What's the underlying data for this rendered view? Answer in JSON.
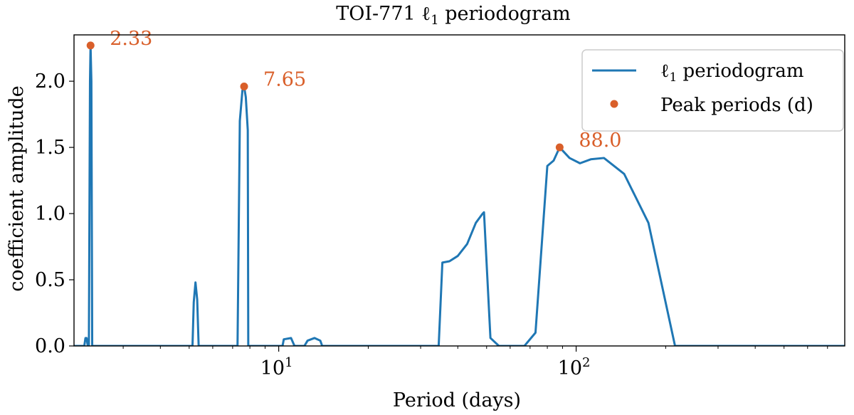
{
  "chart_data": {
    "type": "line",
    "title": "TOI-771 ℓ",
    "title_subscript": "1",
    "title_suffix": " periodogram",
    "xlabel": "Period (days)",
    "ylabel": "coefficient amplitude",
    "xscale": "log",
    "xlim": [
      2.05,
      800
    ],
    "ylim": [
      0,
      2.35
    ],
    "y_ticks": [
      {
        "value": 0.0,
        "label": "0.0"
      },
      {
        "value": 0.5,
        "label": "0.5"
      },
      {
        "value": 1.0,
        "label": "1.0"
      },
      {
        "value": 1.5,
        "label": "1.5"
      },
      {
        "value": 2.0,
        "label": "2.0"
      }
    ],
    "x_major_ticks": [
      {
        "value": 10,
        "base": "10",
        "exp": "1"
      },
      {
        "value": 100,
        "base": "10",
        "exp": "2"
      }
    ],
    "x_minor_ticks": [
      3,
      4,
      5,
      6,
      7,
      8,
      9,
      20,
      30,
      40,
      50,
      60,
      70,
      80,
      90,
      200,
      300,
      400,
      500,
      600,
      700
    ],
    "grid": false,
    "series": [
      {
        "name": "ℓ₁ periodogram",
        "legend_main": "ℓ",
        "legend_sub": "1",
        "legend_rest": " periodogram",
        "color": "#1f77b4",
        "points": [
          [
            2.05,
            0
          ],
          [
            2.22,
            0
          ],
          [
            2.24,
            0.06
          ],
          [
            2.26,
            0.06
          ],
          [
            2.28,
            0
          ],
          [
            2.3,
            0
          ],
          [
            2.32,
            2.0
          ],
          [
            2.33,
            2.27
          ],
          [
            2.345,
            2.0
          ],
          [
            2.36,
            0
          ],
          [
            5.13,
            0
          ],
          [
            5.18,
            0.33
          ],
          [
            5.25,
            0.48
          ],
          [
            5.32,
            0.35
          ],
          [
            5.38,
            0
          ],
          [
            7.27,
            0
          ],
          [
            7.4,
            1.7
          ],
          [
            7.55,
            1.93
          ],
          [
            7.65,
            1.96
          ],
          [
            7.75,
            1.88
          ],
          [
            7.87,
            1.63
          ],
          [
            7.9,
            0
          ],
          [
            10.3,
            0
          ],
          [
            10.4,
            0.05
          ],
          [
            11.0,
            0.06
          ],
          [
            11.3,
            0
          ],
          [
            12.2,
            0
          ],
          [
            12.5,
            0.04
          ],
          [
            13.2,
            0.06
          ],
          [
            13.8,
            0.04
          ],
          [
            14.0,
            0
          ],
          [
            34.5,
            0
          ],
          [
            35.5,
            0.63
          ],
          [
            37.5,
            0.64
          ],
          [
            40.0,
            0.68
          ],
          [
            43.0,
            0.77
          ],
          [
            46.0,
            0.93
          ],
          [
            48.5,
            1.0
          ],
          [
            49.0,
            1.01
          ],
          [
            51.5,
            0.06
          ],
          [
            55.0,
            0
          ],
          [
            67.0,
            0
          ],
          [
            73.0,
            0.1
          ],
          [
            80.0,
            1.36
          ],
          [
            84.0,
            1.4
          ],
          [
            88.0,
            1.5
          ],
          [
            95.0,
            1.42
          ],
          [
            103.0,
            1.38
          ],
          [
            112.0,
            1.41
          ],
          [
            124.0,
            1.42
          ],
          [
            145.0,
            1.3
          ],
          [
            175.0,
            0.93
          ],
          [
            215.0,
            0
          ],
          [
            800,
            0
          ]
        ]
      },
      {
        "name": "Peak periods (d)",
        "legend_text": "Peak periods (d)",
        "color": "#d95f2a",
        "points": [
          [
            2.33,
            2.27
          ],
          [
            7.65,
            1.96
          ],
          [
            88.0,
            1.5
          ]
        ]
      }
    ],
    "annotations": [
      {
        "x": 2.33,
        "y": 2.27,
        "text": "2.33"
      },
      {
        "x": 7.65,
        "y": 1.96,
        "text": "7.65"
      },
      {
        "x": 88.0,
        "y": 1.5,
        "text": "88.0"
      }
    ],
    "legend_position": "top-right"
  }
}
